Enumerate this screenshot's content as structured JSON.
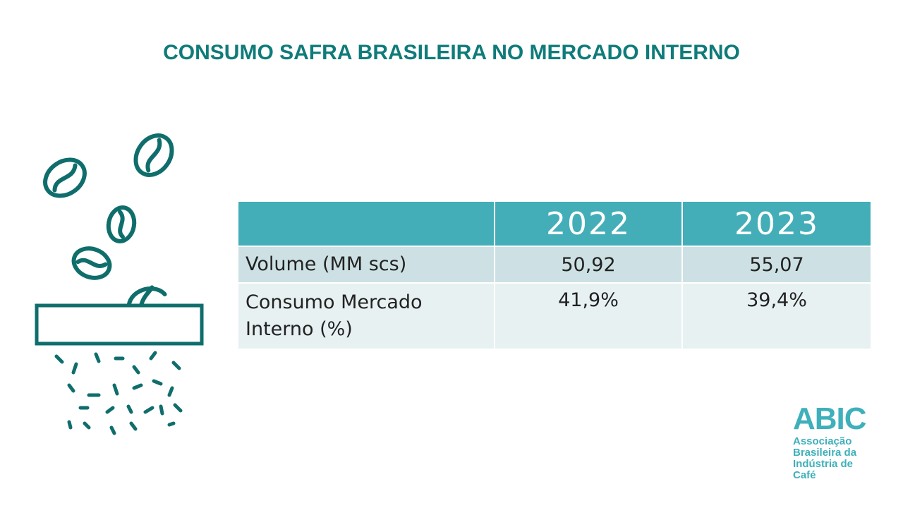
{
  "slide": {
    "title": "CONSUMO SAFRA BRASILEIRA NO MERCADO INTERNO"
  },
  "table": {
    "headers": [
      "",
      "2022",
      "2023"
    ],
    "rows": [
      {
        "label": "Volume (MM scs)",
        "values": [
          "50,92",
          "55,07"
        ]
      },
      {
        "label_line1": "Consumo Mercado",
        "label_line2": "Interno (%)",
        "values": [
          "41,9%",
          "39,4%"
        ]
      }
    ]
  },
  "logo": {
    "name": "ABIC",
    "line1": "Associação",
    "line2": "Brasileira da",
    "line3": "Indústria de",
    "line4": "Café"
  },
  "colors": {
    "title": "#0f7b7a",
    "header_bg": "#43aeb8",
    "row1_bg": "#cde1e4",
    "row2_bg": "#e7f1f2",
    "icon_stroke": "#0f6e6c",
    "logo": "#3fb0bb"
  },
  "icons": {
    "illustration": "coffee-grinder-icon"
  }
}
